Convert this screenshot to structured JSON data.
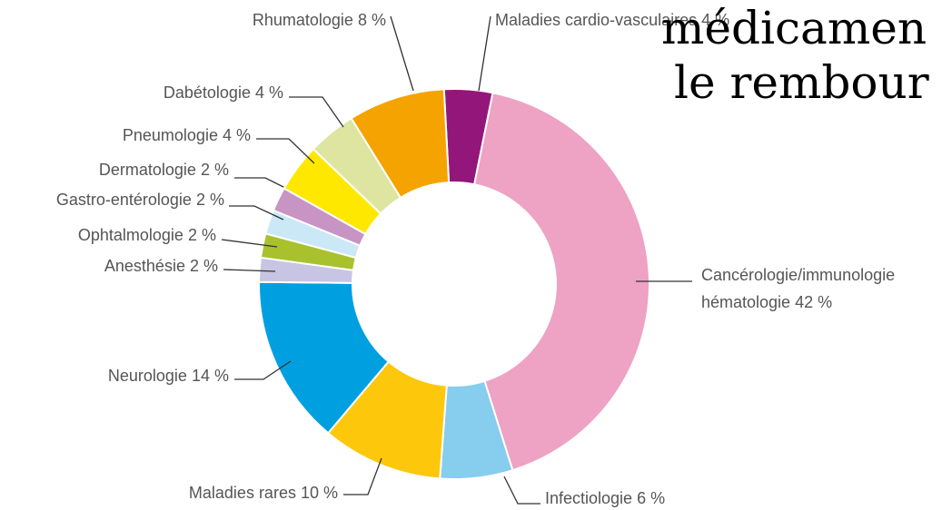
{
  "chart_data": {
    "type": "pie",
    "donut": true,
    "title_lines": [
      "médicamen",
      "le rembour"
    ],
    "categories": [
      "Maladies cardio-vasculaires",
      "Cancérologie/immunologie hématologie",
      "Infectiologie",
      "Maladies rares",
      "Neurologie",
      "Anesthésie",
      "Ophtalmologie",
      "Gastro-entérologie",
      "Dermatologie",
      "Pneumologie",
      "Dabétologie",
      "Rhumatologie"
    ],
    "values": [
      4,
      42,
      6,
      10,
      14,
      2,
      2,
      2,
      2,
      4,
      4,
      8
    ],
    "value_labels": [
      "4 %",
      "42 %",
      "6 %",
      "10 %",
      "14 %",
      "2 %",
      "2 %",
      "2 %",
      "2 %",
      "4 %",
      "4 %",
      "8 %"
    ],
    "colors": [
      "#93177a",
      "#eea2c4",
      "#86cdee",
      "#fdc70c",
      "#00a0e0",
      "#c8c4e4",
      "#a8c12d",
      "#cbe8f7",
      "#c794c4",
      "#ffe800",
      "#dde5a1",
      "#f5a300"
    ]
  }
}
